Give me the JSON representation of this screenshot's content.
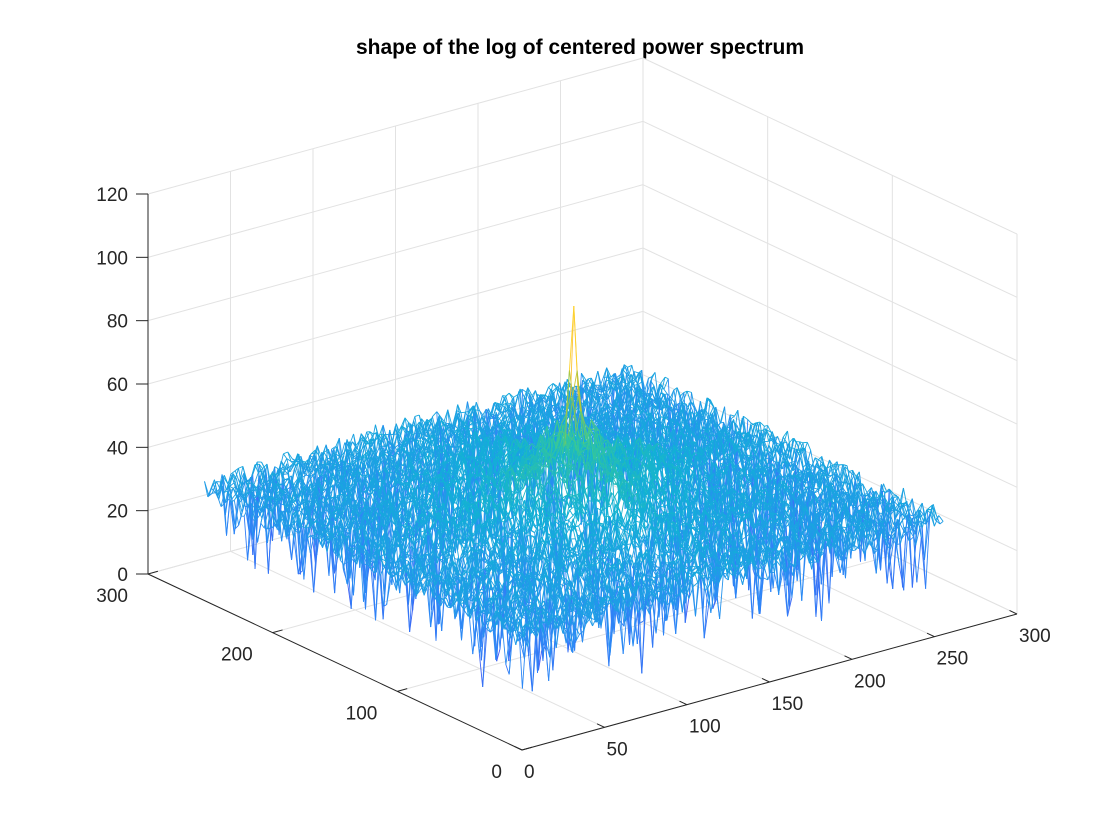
{
  "chart_data": {
    "type": "surface",
    "style": "3d-mesh",
    "title": "shape of the log of centered power spectrum",
    "xlabel": "",
    "ylabel": "",
    "zlabel": "",
    "grid": true,
    "colormap": "parula",
    "xlim": [
      0,
      300
    ],
    "ylim": [
      0,
      300
    ],
    "zlim": [
      0,
      120
    ],
    "x_ticks": [
      "0",
      "50",
      "100",
      "150",
      "200",
      "250",
      "300"
    ],
    "y_ticks": [
      "0",
      "100",
      "200",
      "300"
    ],
    "z_ticks": [
      "0",
      "20",
      "40",
      "60",
      "80",
      "100",
      "120"
    ],
    "surface": {
      "x_range": [
        1,
        256
      ],
      "y_range": [
        1,
        256
      ],
      "peak": {
        "x": 128,
        "y": 128,
        "z": 98
      },
      "baseline_z": 35,
      "noise_trough_z": 5,
      "noise_crest_z": 42
    }
  }
}
